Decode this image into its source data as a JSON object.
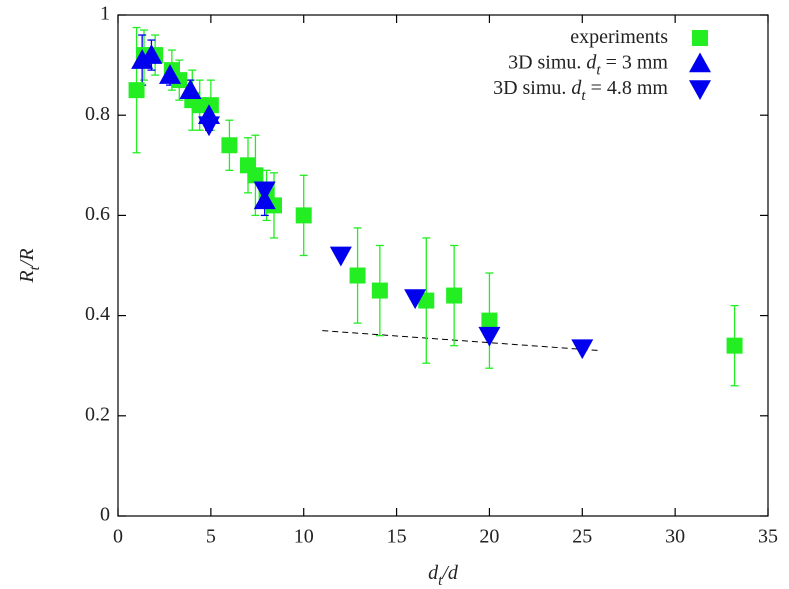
{
  "chart_data": {
    "type": "scatter",
    "xlabel": [
      "d",
      "t",
      "/d"
    ],
    "ylabel": [
      "R",
      "t",
      "/R"
    ],
    "xlim": [
      0,
      35
    ],
    "xticks": [
      0,
      5,
      10,
      15,
      20,
      25,
      30,
      35
    ],
    "ylim": [
      0,
      1
    ],
    "yticks": [
      0,
      0.2,
      0.4,
      0.6,
      0.8,
      1
    ],
    "legend": "top right",
    "series": [
      {
        "name": [
          "experiments"
        ],
        "color": "#22ee22",
        "marker": "square",
        "x": [
          1.0,
          1.4,
          2.0,
          2.9,
          3.3,
          4.0,
          4.4,
          5.0,
          6.0,
          7.0,
          7.4,
          8.0,
          8.4,
          10.0,
          12.9,
          14.1,
          16.6,
          18.1,
          20.0,
          33.2
        ],
        "values": [
          0.85,
          0.92,
          0.92,
          0.89,
          0.87,
          0.83,
          0.82,
          0.82,
          0.74,
          0.7,
          0.68,
          0.64,
          0.62,
          0.6,
          0.48,
          0.45,
          0.43,
          0.44,
          0.39,
          0.34
        ],
        "errors": [
          0.125,
          0.05,
          0.04,
          0.04,
          0.04,
          0.06,
          0.05,
          0.05,
          0.05,
          0.055,
          0.08,
          0.05,
          0.065,
          0.08,
          0.095,
          0.09,
          0.125,
          0.1,
          0.095,
          0.08
        ]
      },
      {
        "name": [
          "3D simu. ",
          "d",
          "t",
          " = 3 mm"
        ],
        "color": "#0000ee",
        "marker": "triangle-up",
        "x": [
          1.3,
          1.8,
          2.8,
          3.9,
          4.9,
          7.9
        ],
        "values": [
          0.91,
          0.92,
          0.88,
          0.85,
          0.8,
          0.63
        ],
        "errors": [
          0.05,
          0.03,
          0.02,
          0.02,
          0.03,
          0.03
        ]
      },
      {
        "name": [
          "3D simu. ",
          "d",
          "t",
          " = 4.8 mm"
        ],
        "color": "#0000ee",
        "marker": "triangle-down",
        "x": [
          4.9,
          7.9,
          12,
          16,
          20,
          25
        ],
        "values": [
          0.78,
          0.65,
          0.52,
          0.435,
          0.36,
          0.335
        ]
      }
    ],
    "lines": [
      {
        "x": [
          11,
          26
        ],
        "values": [
          0.37,
          0.33
        ],
        "color": "#000000",
        "dashed": true
      }
    ]
  }
}
